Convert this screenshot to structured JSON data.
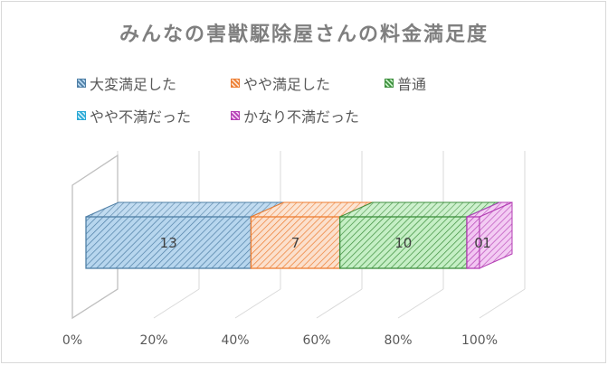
{
  "chart_data": {
    "type": "bar",
    "orientation": "horizontal",
    "stacked": "percent",
    "title": "みんなの害獣駆除屋さんの料金満足度",
    "xlim": [
      0,
      100
    ],
    "tick_labels": [
      "0%",
      "20%",
      "40%",
      "60%",
      "80%",
      "100%"
    ],
    "legend_position": "top-left",
    "grid": true,
    "series": [
      {
        "name": "大変満足した",
        "value": 13,
        "label": "13",
        "color": "#4f7fa6",
        "fill": "#b7d6ee"
      },
      {
        "name": "やや満足した",
        "value": 7,
        "label": "7",
        "color": "#ed7d31",
        "fill": "#fbe0cd"
      },
      {
        "name": "普通",
        "value": 10,
        "label": "10",
        "color": "#3d8f3d",
        "fill": "#c5efc5"
      },
      {
        "name": "やや不満だった",
        "value": 0,
        "label": "0",
        "color": "#2aa9d6",
        "fill": "#c9ecf8"
      },
      {
        "name": "かなり不満だった",
        "value": 1,
        "label": "1",
        "color": "#b43fb4",
        "fill": "#f2c6f2"
      }
    ]
  }
}
